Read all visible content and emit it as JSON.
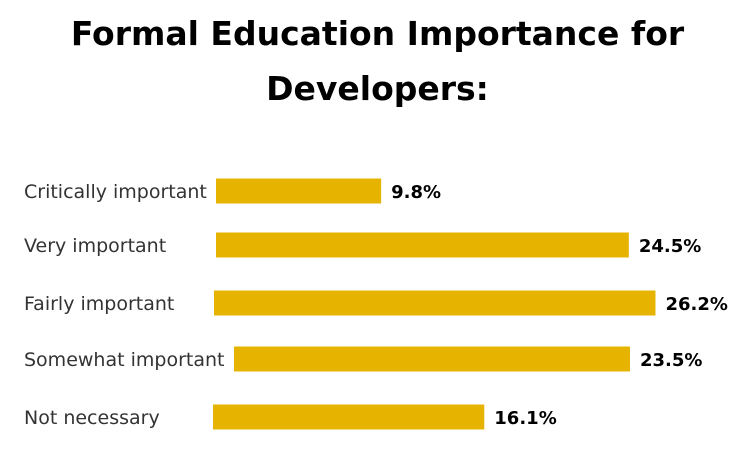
{
  "colors": {
    "bar": "#e6b400",
    "text": "#333333",
    "value_text": "#000000"
  },
  "chart_data": {
    "type": "bar",
    "orientation": "horizontal",
    "title": "Formal Education Importance for Developers:",
    "categories": [
      "Critically important",
      "Very important",
      "Fairly important",
      "Somewhat important",
      "Not necessary"
    ],
    "values": [
      9.8,
      24.5,
      26.2,
      23.5,
      16.1
    ],
    "value_labels": [
      "9.8%",
      "24.5%",
      "26.2%",
      "23.5%",
      "16.1%"
    ],
    "unit": "%",
    "grid": false,
    "legend": "none"
  }
}
